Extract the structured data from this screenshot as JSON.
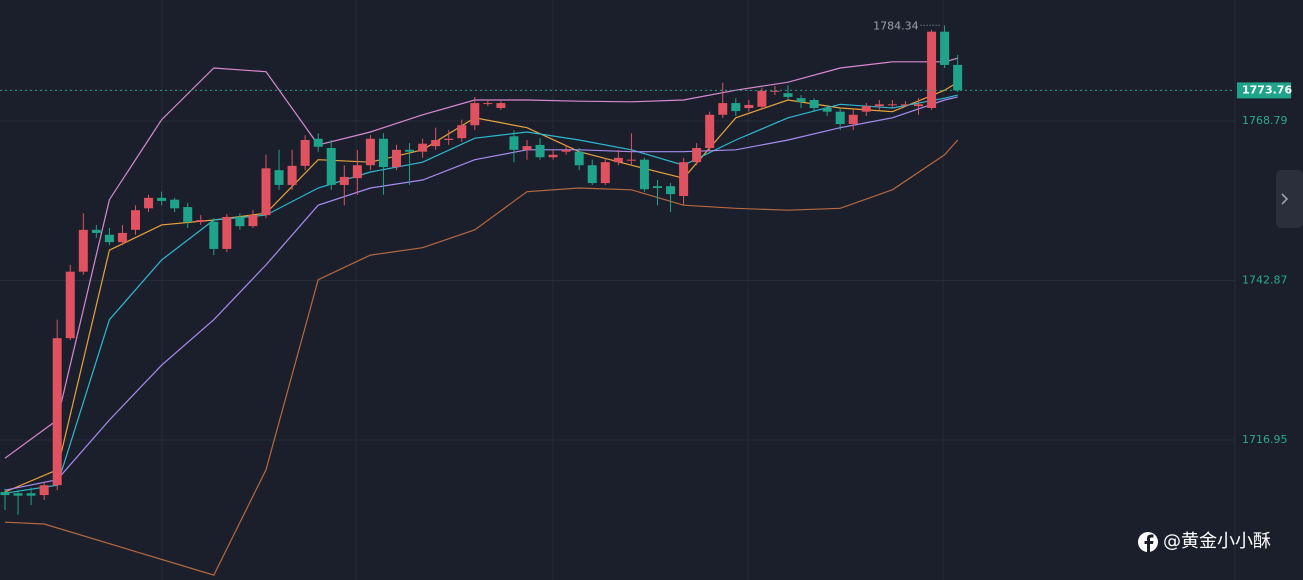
{
  "chart_data": {
    "type": "candlestick",
    "up_color": "#e0525f",
    "down_color": "#1fa38b",
    "open": [
      1708.5,
      1708.3,
      1708.3,
      1708.0,
      1709.6,
      1733.5,
      1744.3,
      1751.1,
      1750.3,
      1749.1,
      1751.1,
      1754.6,
      1756.3,
      1756.0,
      1754.8,
      1752.4,
      1752.4,
      1748.0,
      1753.2,
      1751.7,
      1753.5,
      1760.8,
      1758.4,
      1761.5,
      1765.9,
      1764.4,
      1758.4,
      1759.5,
      1761.6,
      1765.9,
      1761.3,
      1764.1,
      1763.8,
      1764.7,
      1765.7,
      1766.0,
      1768.1,
      1771.7,
      1770.9,
      1766.3,
      1764.1,
      1764.9,
      1762.9,
      1763.8,
      1763.8,
      1761.6,
      1758.7,
      1762.1,
      1762.5,
      1762.5,
      1758.2,
      1758.2,
      1756.6,
      1762.1,
      1764.4,
      1769.8,
      1771.7,
      1770.9,
      1771.1,
      1773.7,
      1773.3,
      1772.5,
      1772.2,
      1770.9,
      1770.3,
      1768.3,
      1770.3,
      1771.2,
      1771.5,
      1771.5,
      1771.2,
      1770.9,
      1783.3,
      1777.9
    ],
    "high": [
      1709.0,
      1708.8,
      1709.2,
      1710.1,
      1736.5,
      1745.4,
      1753.8,
      1751.9,
      1751.4,
      1751.9,
      1755.1,
      1756.8,
      1757.3,
      1756.3,
      1755.5,
      1753.5,
      1753.0,
      1753.7,
      1753.8,
      1754.3,
      1763.3,
      1764.1,
      1764.1,
      1766.5,
      1766.8,
      1765.7,
      1761.6,
      1764.1,
      1766.5,
      1766.8,
      1764.9,
      1765.2,
      1765.9,
      1767.7,
      1767.3,
      1769.0,
      1772.7,
      1772.2,
      1772.0,
      1767.3,
      1765.7,
      1766.0,
      1764.1,
      1764.9,
      1764.4,
      1762.5,
      1762.8,
      1764.1,
      1766.8,
      1762.8,
      1759.2,
      1758.7,
      1762.8,
      1765.2,
      1770.3,
      1775.0,
      1772.5,
      1772.2,
      1774.2,
      1774.5,
      1774.6,
      1773.0,
      1772.5,
      1771.4,
      1770.9,
      1770.6,
      1771.7,
      1772.2,
      1772.2,
      1772.0,
      1772.5,
      1783.6,
      1784.34,
      1779.5
    ],
    "low": [
      1705.6,
      1704.8,
      1706.4,
      1707.2,
      1708.8,
      1733.2,
      1743.8,
      1749.8,
      1748.6,
      1748.6,
      1750.3,
      1754.0,
      1755.1,
      1754.0,
      1751.4,
      1751.9,
      1747.0,
      1747.5,
      1751.1,
      1751.4,
      1753.0,
      1757.6,
      1757.6,
      1760.8,
      1763.8,
      1757.6,
      1755.1,
      1756.8,
      1760.8,
      1756.8,
      1760.8,
      1758.4,
      1762.8,
      1764.1,
      1764.9,
      1765.4,
      1767.3,
      1771.2,
      1770.6,
      1762.1,
      1762.5,
      1762.5,
      1762.5,
      1763.3,
      1760.8,
      1758.4,
      1758.4,
      1761.6,
      1761.6,
      1757.3,
      1755.1,
      1754.0,
      1755.1,
      1761.6,
      1763.8,
      1769.3,
      1769.6,
      1770.3,
      1770.6,
      1773.0,
      1772.2,
      1770.9,
      1770.3,
      1769.6,
      1767.3,
      1767.3,
      1769.6,
      1770.6,
      1770.9,
      1771.1,
      1769.8,
      1770.6,
      1777.4,
      1773.5
    ],
    "close": [
      1708.0,
      1707.9,
      1707.9,
      1709.6,
      1733.5,
      1744.3,
      1751.1,
      1750.6,
      1749.1,
      1750.6,
      1754.3,
      1756.3,
      1755.8,
      1754.6,
      1752.4,
      1752.7,
      1748.0,
      1753.2,
      1751.7,
      1753.5,
      1761.1,
      1758.4,
      1761.5,
      1765.7,
      1764.6,
      1758.4,
      1759.7,
      1761.6,
      1765.9,
      1761.3,
      1764.1,
      1763.8,
      1765.1,
      1765.7,
      1765.9,
      1768.1,
      1771.7,
      1771.7,
      1771.7,
      1764.1,
      1764.7,
      1762.9,
      1763.3,
      1764.1,
      1761.6,
      1758.7,
      1762.1,
      1762.8,
      1762.5,
      1757.7,
      1757.9,
      1756.9,
      1762.1,
      1764.4,
      1769.8,
      1771.7,
      1770.4,
      1771.4,
      1773.7,
      1773.7,
      1772.7,
      1771.9,
      1770.9,
      1770.3,
      1768.3,
      1769.8,
      1771.2,
      1771.5,
      1771.5,
      1771.5,
      1771.5,
      1783.3,
      1777.9,
      1773.76
    ],
    "lines": [
      {
        "color": "#d88ad0",
        "x": [
          0,
          4,
          8,
          12,
          16,
          20,
          24,
          28,
          32,
          36,
          40,
          44,
          48,
          52,
          56,
          60,
          64,
          68,
          72,
          73
        ],
        "values": [
          1714.0,
          1720.2,
          1756.0,
          1769.0,
          1777.4,
          1776.8,
          1764.9,
          1767.0,
          1769.8,
          1772.2,
          1772.2,
          1772.0,
          1771.9,
          1772.2,
          1773.8,
          1775.1,
          1777.4,
          1778.4,
          1778.4,
          1779.0
        ]
      },
      {
        "color": "#b5683f",
        "x": [
          0,
          3,
          16,
          20,
          24,
          28,
          32,
          36,
          40,
          44,
          48,
          52,
          56,
          60,
          64,
          68,
          72,
          73
        ],
        "values": [
          1703.6,
          1703.3,
          1695.0,
          1712.1,
          1743.0,
          1747.0,
          1748.2,
          1751.1,
          1757.3,
          1757.9,
          1757.6,
          1755.1,
          1754.6,
          1754.3,
          1754.6,
          1757.6,
          1763.3,
          1765.7
        ]
      },
      {
        "color": "#e8a33c",
        "x": [
          0,
          4,
          8,
          12,
          16,
          20,
          24,
          28,
          32,
          36,
          40,
          44,
          48,
          52,
          56,
          60,
          64,
          68,
          72,
          73
        ],
        "values": [
          1708.5,
          1712.1,
          1747.8,
          1751.9,
          1752.7,
          1753.8,
          1762.5,
          1762.1,
          1764.1,
          1769.3,
          1767.7,
          1763.8,
          1761.6,
          1759.5,
          1769.3,
          1772.2,
          1770.9,
          1770.3,
          1773.8,
          1775.1
        ]
      },
      {
        "color": "#2fb8cf",
        "x": [
          0,
          4,
          8,
          12,
          16,
          20,
          24,
          28,
          32,
          36,
          40,
          44,
          48,
          52,
          56,
          60,
          64,
          68,
          72,
          73
        ],
        "values": [
          1708.3,
          1709.6,
          1736.5,
          1746.2,
          1752.7,
          1753.5,
          1757.9,
          1760.5,
          1762.1,
          1766.0,
          1767.0,
          1765.7,
          1764.1,
          1761.6,
          1765.7,
          1769.3,
          1771.5,
          1770.9,
          1772.5,
          1773.0
        ]
      },
      {
        "color": "#a78cf0",
        "x": [
          0,
          4,
          8,
          12,
          16,
          20,
          24,
          28,
          32,
          36,
          40,
          44,
          48,
          52,
          56,
          60,
          64,
          68,
          72,
          73
        ],
        "values": [
          1708.8,
          1710.5,
          1720.2,
          1729.1,
          1736.5,
          1745.4,
          1755.1,
          1757.9,
          1759.2,
          1762.5,
          1764.1,
          1764.1,
          1763.8,
          1763.8,
          1764.1,
          1765.7,
          1767.7,
          1769.3,
          1772.2,
          1772.7
        ]
      }
    ],
    "ylim": [
      1694.2,
      1788.45
    ],
    "yticks": [
      1716.95,
      1742.87,
      1768.79
    ],
    "grid": true,
    "last_price": 1773.76,
    "max_annotation": 1784.34,
    "watermark": "@黄金小小酥"
  }
}
